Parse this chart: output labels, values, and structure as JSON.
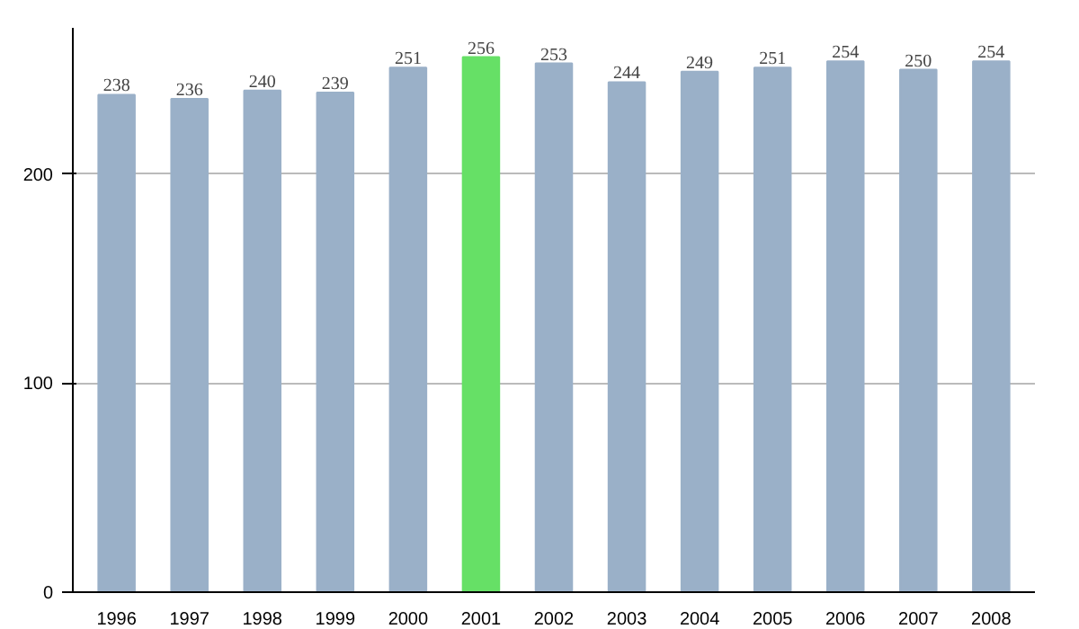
{
  "chart_data": {
    "type": "bar",
    "categories": [
      "1996",
      "1997",
      "1998",
      "1999",
      "2000",
      "2001",
      "2002",
      "2003",
      "2004",
      "2005",
      "2006",
      "2007",
      "2008"
    ],
    "values": [
      238,
      236,
      240,
      239,
      251,
      256,
      253,
      244,
      249,
      251,
      254,
      250,
      254
    ],
    "colors": [
      "#9ab0c8",
      "#9ab0c8",
      "#9ab0c8",
      "#9ab0c8",
      "#9ab0c8",
      "#66e066",
      "#9ab0c8",
      "#9ab0c8",
      "#9ab0c8",
      "#9ab0c8",
      "#9ab0c8",
      "#9ab0c8",
      "#9ab0c8"
    ],
    "ylim": [
      0,
      270
    ],
    "yticks": [
      0,
      100,
      200
    ],
    "grid": "y",
    "data_labels": true
  }
}
